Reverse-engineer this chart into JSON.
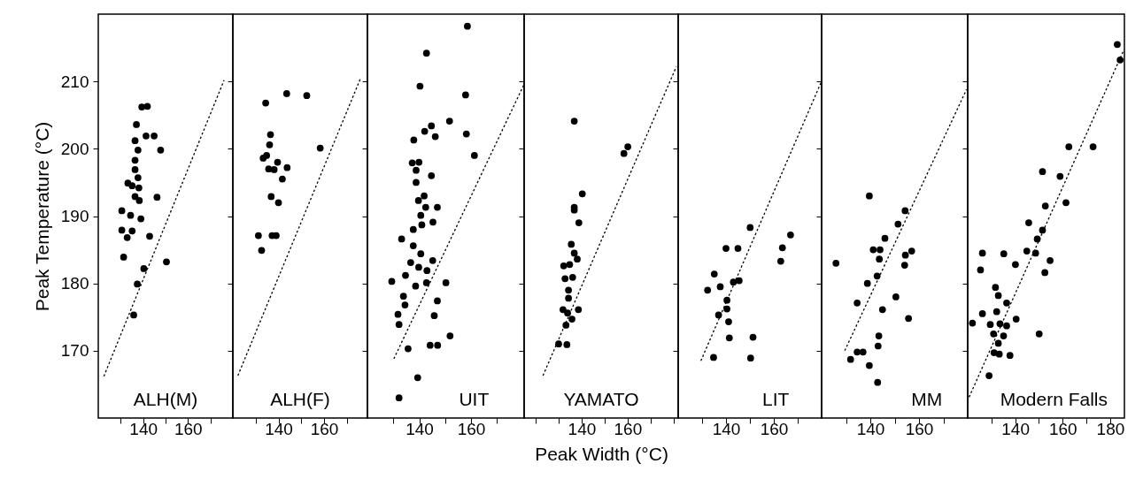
{
  "chart_data": [
    {
      "type": "scatter",
      "ylabel": "Peak Temperature (°C)",
      "annotations": [
        "ALH(M)"
      ],
      "xlim": [
        120,
        180
      ],
      "xticks": [
        {
          "value": 130,
          "label": null
        },
        140,
        {
          "value": 150,
          "label": null
        },
        160,
        {
          "value": 170,
          "label": null
        }
      ],
      "ylim": [
        160,
        220
      ],
      "yticks": [
        170,
        180,
        190,
        200,
        210
      ],
      "marker": "circle",
      "series": [
        {
          "color": "#000000",
          "x": [
            139.4,
            141.9,
            137.0,
            141.3,
            144.9,
            136.4,
            137.7,
            147.8,
            136.4,
            136.4,
            137.7,
            133.2,
            135.1,
            138.1,
            136.4,
            138.3,
            146.2,
            130.5,
            134.4,
            139.0,
            130.5,
            135.1,
            132.9,
            142.9,
            131.3,
            150.4,
            140.3,
            137.4,
            135.8
          ],
          "values": [
            206.2,
            206.3,
            203.6,
            201.9,
            201.9,
            201.2,
            199.8,
            199.8,
            198.3,
            196.9,
            195.7,
            194.9,
            194.5,
            194.2,
            192.9,
            192.3,
            192.8,
            190.8,
            190.1,
            189.6,
            187.9,
            187.8,
            186.8,
            187.0,
            183.9,
            183.2,
            182.2,
            179.9,
            175.3
          ]
        },
        {
          "type": "line",
          "color": "#000000",
          "marker": "none",
          "line_style": "dotted",
          "x": [
            122.5,
            176.1
          ],
          "values": [
            166.2,
            210.2
          ]
        }
      ]
    },
    {
      "type": "scatter",
      "annotations": [
        "ALH(F)"
      ],
      "tick_labels": "x",
      "xlim": [
        120,
        179
      ],
      "xticks": [
        {
          "value": 130,
          "label": null
        },
        140,
        {
          "value": 150,
          "label": null
        },
        160,
        {
          "value": 170,
          "label": null
        }
      ],
      "ylim": [
        160,
        220
      ],
      "yticks": [
        {
          "value": 170,
          "label": null
        },
        {
          "value": 180,
          "label": null
        },
        {
          "value": 190,
          "label": null
        },
        {
          "value": 200,
          "label": null
        },
        {
          "value": 210,
          "label": null
        }
      ],
      "marker": "circle",
      "series": [
        {
          "color": "#000000",
          "x": [
            143.6,
            152.4,
            134.4,
            158.3,
            136.5,
            136.1,
            133.3,
            134.8,
            139.6,
            135.7,
            138.1,
            143.8,
            141.7,
            136.8,
            140.0,
            131.2,
            137.2,
            139.0,
            132.6
          ],
          "values": [
            208.2,
            207.9,
            206.8,
            200.1,
            202.1,
            200.6,
            198.6,
            199.0,
            198.0,
            197.0,
            196.9,
            197.2,
            195.5,
            192.9,
            192.0,
            187.1,
            187.1,
            187.1,
            184.9
          ]
        },
        {
          "type": "line",
          "color": "#000000",
          "marker": "none",
          "line_style": "dotted",
          "x": [
            122.2,
            175.9
          ],
          "values": [
            166.3,
            210.4
          ]
        }
      ]
    },
    {
      "type": "scatter",
      "annotations": [
        "UIT"
      ],
      "tick_labels": "x",
      "xlim": [
        120,
        180.5
      ],
      "xticks": [
        {
          "value": 130,
          "label": null
        },
        140,
        {
          "value": 150,
          "label": null
        },
        160,
        {
          "value": 170,
          "label": null
        }
      ],
      "ylim": [
        160,
        220
      ],
      "yticks": [
        {
          "value": 170,
          "label": null
        },
        {
          "value": 180,
          "label": null
        },
        {
          "value": 190,
          "label": null
        },
        {
          "value": 200,
          "label": null
        },
        {
          "value": 210,
          "label": null
        }
      ],
      "marker": "circle",
      "series": [
        {
          "color": "#000000",
          "x": [
            158.6,
            142.8,
            140.3,
            157.9,
            151.7,
            144.7,
            142.1,
            146.2,
            158.2,
            137.9,
            161.3,
            137.3,
            139.9,
            138.8,
            144.7,
            138.8,
            141.9,
            139.7,
            142.5,
            147.0,
            140.6,
            141.0,
            145.3,
            137.7,
            133.2,
            137.7,
            140.6,
            136.7,
            145.2,
            139.8,
            143.0,
            134.7,
            129.4,
            142.8,
            150.3,
            138.6,
            133.9,
            147.0,
            134.5,
            131.8,
            145.8,
            132.2,
            151.9,
            144.2,
            147.1,
            135.7,
            139.4,
            132.2
          ],
          "values": [
            218.2,
            214.2,
            209.3,
            208.0,
            204.1,
            203.4,
            202.6,
            201.8,
            202.2,
            201.3,
            199.0,
            197.9,
            198.0,
            196.8,
            196.0,
            195.0,
            193.0,
            192.3,
            191.3,
            191.3,
            190.1,
            188.7,
            189.1,
            188.0,
            186.6,
            185.6,
            184.4,
            183.1,
            183.4,
            182.4,
            181.9,
            181.2,
            180.3,
            180.1,
            180.1,
            179.6,
            178.1,
            177.4,
            176.8,
            175.4,
            175.2,
            173.9,
            172.2,
            170.8,
            170.8,
            170.3,
            166.0,
            163.0
          ]
        },
        {
          "type": "line",
          "color": "#000000",
          "marker": "none",
          "line_style": "dotted",
          "x": [
            130.2,
            180.5
          ],
          "values": [
            168.8,
            209.6
          ]
        }
      ]
    },
    {
      "type": "scatter",
      "xlabel": "Peak Width (°C)",
      "annotations": [
        "YAMATO"
      ],
      "tick_labels": "x",
      "xlim": [
        115,
        182
      ],
      "xticks": [
        {
          "value": 120,
          "label": null
        },
        {
          "value": 130,
          "label": null
        },
        140,
        {
          "value": 150,
          "label": null
        },
        160,
        {
          "value": 170,
          "label": null
        },
        {
          "value": 180,
          "label": null
        }
      ],
      "ylim": [
        160,
        220
      ],
      "yticks": [
        {
          "value": 170,
          "label": null
        },
        {
          "value": 180,
          "label": null
        },
        {
          "value": 190,
          "label": null
        },
        {
          "value": 200,
          "label": null
        },
        {
          "value": 210,
          "label": null
        }
      ],
      "marker": "circle",
      "series": [
        {
          "color": "#000000",
          "x": [
            136.8,
            158.4,
            160.1,
            140.3,
            136.8,
            136.8,
            138.8,
            135.5,
            136.8,
            138.1,
            132.2,
            134.8,
            132.8,
            136.1,
            134.3,
            134.3,
            131.9,
            138.6,
            133.9,
            135.8,
            133.2,
            130.0,
            133.6
          ],
          "values": [
            204.1,
            199.3,
            200.3,
            193.3,
            191.3,
            190.9,
            189.0,
            185.8,
            184.5,
            183.6,
            182.6,
            182.8,
            180.7,
            180.9,
            179.0,
            177.8,
            176.1,
            176.1,
            175.6,
            174.7,
            173.8,
            171.0,
            170.9
          ]
        },
        {
          "type": "line",
          "color": "#000000",
          "marker": "none",
          "line_style": "dotted",
          "x": [
            123.2,
            181.2
          ],
          "values": [
            166.3,
            212.2
          ]
        }
      ]
    },
    {
      "type": "scatter",
      "annotations": [
        "LIT"
      ],
      "tick_labels": "x",
      "xlim": [
        120,
        180
      ],
      "xticks": [
        {
          "value": 130,
          "label": null
        },
        140,
        {
          "value": 150,
          "label": null
        },
        160,
        {
          "value": 170,
          "label": null
        }
      ],
      "ylim": [
        160,
        220
      ],
      "yticks": [
        {
          "value": 170,
          "label": null
        },
        {
          "value": 180,
          "label": null
        },
        {
          "value": 190,
          "label": null
        },
        {
          "value": 200,
          "label": null
        },
        {
          "value": 210,
          "label": null
        }
      ],
      "marker": "circle",
      "series": [
        {
          "color": "#000000",
          "x": [
            150.1,
            167.0,
            140.0,
            145.0,
            163.6,
            162.9,
            135.1,
            143.1,
            145.5,
            132.3,
            137.6,
            140.4,
            140.4,
            136.9,
            141.1,
            141.4,
            151.3,
            134.8,
            150.3
          ],
          "values": [
            188.3,
            187.2,
            185.2,
            185.2,
            185.3,
            183.3,
            181.4,
            180.2,
            180.4,
            179.0,
            179.5,
            177.5,
            176.2,
            175.3,
            174.3,
            171.9,
            172.0,
            169.0,
            168.9
          ]
        },
        {
          "type": "line",
          "color": "#000000",
          "marker": "none",
          "line_style": "dotted",
          "x": [
            129.5,
            179.7
          ],
          "values": [
            168.5,
            209.8
          ]
        }
      ]
    },
    {
      "type": "scatter",
      "annotations": [
        "MM"
      ],
      "tick_labels": "x",
      "xlim": [
        120,
        180
      ],
      "xticks": [
        {
          "value": 130,
          "label": null
        },
        140,
        {
          "value": 150,
          "label": null
        },
        160,
        {
          "value": 170,
          "label": null
        }
      ],
      "ylim": [
        160,
        220
      ],
      "yticks": [
        {
          "value": 170,
          "label": null
        },
        {
          "value": 180,
          "label": null
        },
        {
          "value": 190,
          "label": null
        },
        {
          "value": 200,
          "label": null
        },
        {
          "value": 210,
          "label": null
        }
      ],
      "marker": "circle",
      "series": [
        {
          "color": "#000000",
          "x": [
            139.6,
            154.3,
            151.4,
            146.0,
            141.2,
            144.0,
            143.7,
            154.4,
            157.0,
            154.1,
            125.9,
            142.8,
            138.8,
            150.5,
            134.6,
            145.0,
            155.7,
            143.5,
            143.2,
            134.6,
            137.0,
            131.9,
            139.6,
            143.0
          ],
          "values": [
            193.0,
            190.8,
            188.8,
            186.7,
            185.0,
            185.0,
            183.6,
            184.2,
            184.8,
            182.7,
            183.0,
            181.1,
            180.0,
            178.0,
            177.1,
            176.1,
            174.8,
            172.2,
            170.7,
            169.8,
            169.8,
            168.7,
            167.8,
            165.3
          ]
        },
        {
          "type": "line",
          "color": "#000000",
          "marker": "none",
          "line_style": "dotted",
          "x": [
            129.5,
            179.5
          ],
          "values": [
            170.0,
            208.8
          ]
        }
      ]
    },
    {
      "type": "scatter",
      "annotations": [
        "Modern Falls"
      ],
      "tick_labels": "x",
      "xlim": [
        120,
        186
      ],
      "xticks": [
        {
          "value": 130,
          "label": null
        },
        140,
        {
          "value": 150,
          "label": null
        },
        160,
        {
          "value": 170,
          "label": null
        },
        180
      ],
      "ylim": [
        160,
        220
      ],
      "yticks": [
        {
          "value": 170,
          "label": null
        },
        {
          "value": 180,
          "label": null
        },
        {
          "value": 190,
          "label": null
        },
        {
          "value": 200,
          "label": null
        },
        {
          "value": 210,
          "label": null
        }
      ],
      "marker": "circle",
      "series": [
        {
          "color": "#000000",
          "x": [
            183.0,
            184.2,
            162.6,
            172.8,
            151.5,
            158.9,
            161.4,
            152.7,
            145.7,
            151.5,
            149.3,
            126.2,
            135.2,
            144.9,
            148.6,
            154.7,
            125.4,
            140.1,
            152.5,
            131.7,
            132.9,
            136.4,
            126.2,
            132.2,
            140.4,
            122.0,
            129.5,
            133.6,
            136.4,
            130.9,
            135.1,
            150.1,
            132.9,
            131.1,
            133.3,
            137.8,
            129.0
          ],
          "values": [
            215.5,
            213.2,
            200.3,
            200.3,
            196.6,
            195.9,
            192.0,
            191.5,
            189.0,
            187.9,
            186.6,
            184.5,
            184.4,
            184.8,
            184.5,
            183.4,
            182.0,
            182.8,
            181.6,
            179.4,
            178.2,
            177.1,
            175.5,
            175.8,
            174.7,
            174.1,
            173.9,
            174.0,
            173.7,
            172.5,
            172.2,
            172.5,
            171.1,
            169.7,
            169.5,
            169.3,
            166.3
          ]
        },
        {
          "type": "line",
          "color": "#000000",
          "marker": "none",
          "line_style": "dotted",
          "x": [
            120.6,
            185.4
          ],
          "values": [
            163.1,
            214.4
          ]
        }
      ]
    }
  ]
}
